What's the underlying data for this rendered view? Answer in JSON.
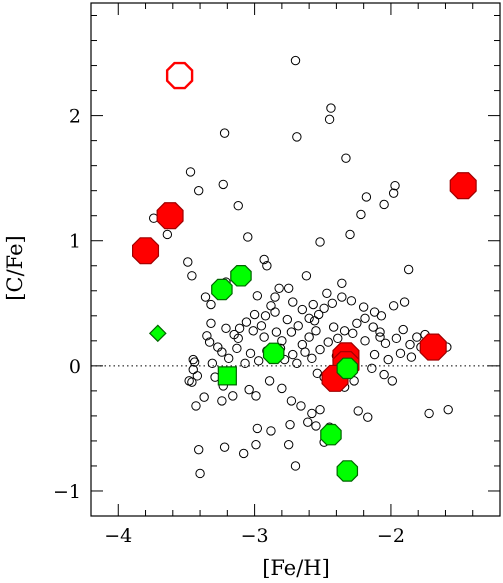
{
  "chart_data": {
    "type": "scatter",
    "xlabel": "[Fe/H]",
    "ylabel": "[C/Fe]",
    "xlim": [
      -4.2,
      -1.2
    ],
    "ylim": [
      -1.2,
      2.9
    ],
    "grid": false,
    "reference_line": {
      "y": 0,
      "style": "dotted"
    },
    "x_ticks": [
      {
        "value": -4,
        "label": "−4"
      },
      {
        "value": -3,
        "label": "−3"
      },
      {
        "value": -2,
        "label": "−2"
      }
    ],
    "y_ticks": [
      {
        "value": -1,
        "label": "−1"
      },
      {
        "value": 0,
        "label": "0"
      },
      {
        "value": 1,
        "label": "1"
      },
      {
        "value": 2,
        "label": "2"
      }
    ],
    "x_minor_step": 0.2,
    "y_minor_step": 0.2,
    "series": [
      {
        "marker": "small-open-circle",
        "color": "#000000",
        "points": [
          [
            -2.7,
            2.44
          ],
          [
            -2.44,
            2.06
          ],
          [
            -2.45,
            1.97
          ],
          [
            -2.33,
            1.66
          ],
          [
            -2.69,
            1.83
          ],
          [
            -3.22,
            1.86
          ],
          [
            -3.47,
            1.55
          ],
          [
            -3.23,
            1.45
          ],
          [
            -3.41,
            1.4
          ],
          [
            -3.74,
            1.18
          ],
          [
            -3.64,
            1.05
          ],
          [
            -3.12,
            1.28
          ],
          [
            -3.05,
            1.03
          ],
          [
            -2.18,
            1.35
          ],
          [
            -1.97,
            1.44
          ],
          [
            -1.98,
            1.38
          ],
          [
            -2.05,
            1.29
          ],
          [
            -2.22,
            1.21
          ],
          [
            -2.3,
            1.05
          ],
          [
            -2.52,
            0.99
          ],
          [
            -2.93,
            0.85
          ],
          [
            -2.91,
            0.8
          ],
          [
            -3.49,
            0.83
          ],
          [
            -3.46,
            0.72
          ],
          [
            -1.87,
            0.77
          ],
          [
            -2.36,
            0.66
          ],
          [
            -2.62,
            0.72
          ],
          [
            -2.75,
            0.62
          ],
          [
            -3.21,
            0.67
          ],
          [
            -2.98,
            0.56
          ],
          [
            -2.72,
            0.51
          ],
          [
            -3.36,
            0.55
          ],
          [
            -3.32,
            0.49
          ],
          [
            -2.36,
            0.55
          ],
          [
            -2.43,
            0.5
          ],
          [
            -2.29,
            0.52
          ],
          [
            -2.07,
            0.4
          ],
          [
            -2.12,
            0.43
          ],
          [
            -1.9,
            0.51
          ],
          [
            -1.98,
            0.48
          ],
          [
            -2.19,
            0.38
          ],
          [
            -2.49,
            0.46
          ],
          [
            -2.53,
            0.41
          ],
          [
            -2.6,
            0.38
          ],
          [
            -2.88,
            0.48
          ],
          [
            -2.85,
            0.43
          ],
          [
            -2.92,
            0.4
          ],
          [
            -3.0,
            0.41
          ],
          [
            -3.06,
            0.35
          ],
          [
            -3.11,
            0.3
          ],
          [
            -3.01,
            0.28
          ],
          [
            -3.21,
            0.3
          ],
          [
            -3.32,
            0.34
          ],
          [
            -3.35,
            0.24
          ],
          [
            -3.33,
            0.19
          ],
          [
            -3.12,
            0.22
          ],
          [
            -2.68,
            0.32
          ],
          [
            -2.73,
            0.27
          ],
          [
            -2.76,
            0.37
          ],
          [
            -2.8,
            0.2
          ],
          [
            -2.84,
            0.27
          ],
          [
            -2.93,
            0.23
          ],
          [
            -2.56,
            0.36
          ],
          [
            -2.6,
            0.23
          ],
          [
            -2.65,
            0.17
          ],
          [
            -2.39,
            0.22
          ],
          [
            -2.46,
            0.19
          ],
          [
            -2.34,
            0.28
          ],
          [
            -2.28,
            0.26
          ],
          [
            -2.19,
            0.2
          ],
          [
            -2.13,
            0.31
          ],
          [
            -2.08,
            0.27
          ],
          [
            -2.04,
            0.18
          ],
          [
            -1.96,
            0.22
          ],
          [
            -1.91,
            0.29
          ],
          [
            -1.86,
            0.17
          ],
          [
            -1.81,
            0.23
          ],
          [
            -1.78,
            0.15
          ],
          [
            -1.69,
            0.21
          ],
          [
            -1.93,
            0.1
          ],
          [
            -1.85,
            0.07
          ],
          [
            -2.02,
            0.05
          ],
          [
            -2.12,
            0.09
          ],
          [
            -2.29,
            0.11
          ],
          [
            -2.35,
            0.03
          ],
          [
            -2.4,
            0.08
          ],
          [
            -2.52,
            0.13
          ],
          [
            -2.58,
            0.06
          ],
          [
            -2.63,
            0.11
          ],
          [
            -2.69,
            0.02
          ],
          [
            -2.72,
            0.09
          ],
          [
            -2.81,
            0.14
          ],
          [
            -2.87,
            0.07
          ],
          [
            -2.91,
            0.12
          ],
          [
            -2.97,
            0.04
          ],
          [
            -3.03,
            0.1
          ],
          [
            -3.07,
            0.02
          ],
          [
            -3.13,
            0.14
          ],
          [
            -3.19,
            0.06
          ],
          [
            -3.24,
            0.11
          ],
          [
            -3.31,
            0.02
          ],
          [
            -3.44,
            0.03
          ],
          [
            -3.45,
            -0.03
          ],
          [
            -3.42,
            -0.08
          ],
          [
            -3.46,
            -0.13
          ],
          [
            -3.29,
            -0.09
          ],
          [
            -3.23,
            -0.16
          ],
          [
            -3.24,
            -0.28
          ],
          [
            -3.16,
            -0.24
          ],
          [
            -3.04,
            -0.19
          ],
          [
            -2.99,
            -0.24
          ],
          [
            -2.89,
            -0.12
          ],
          [
            -2.8,
            -0.18
          ],
          [
            -2.73,
            -0.28
          ],
          [
            -2.66,
            -0.32
          ],
          [
            -2.58,
            -0.38
          ],
          [
            -2.52,
            -0.35
          ],
          [
            -2.61,
            -0.45
          ],
          [
            -2.55,
            -0.48
          ],
          [
            -2.45,
            -0.49
          ],
          [
            -2.24,
            -0.36
          ],
          [
            -2.17,
            -0.41
          ],
          [
            -2.27,
            -0.12
          ],
          [
            -2.34,
            -0.17
          ],
          [
            -2.49,
            -0.09
          ],
          [
            -2.54,
            -0.06
          ],
          [
            -2.14,
            -0.02
          ],
          [
            -2.05,
            -0.07
          ],
          [
            -1.99,
            -0.12
          ],
          [
            -1.72,
            -0.38
          ],
          [
            -1.58,
            -0.35
          ],
          [
            -1.59,
            0.15
          ],
          [
            -1.75,
            0.25
          ],
          [
            -3.43,
            -0.32
          ],
          [
            -3.41,
            -0.67
          ],
          [
            -3.4,
            -0.86
          ],
          [
            -3.22,
            -0.65
          ],
          [
            -3.08,
            -0.7
          ],
          [
            -2.98,
            -0.5
          ],
          [
            -2.99,
            -0.63
          ],
          [
            -2.88,
            -0.52
          ],
          [
            -2.74,
            -0.47
          ],
          [
            -2.75,
            -0.63
          ],
          [
            -2.7,
            -0.8
          ],
          [
            -2.49,
            -0.61
          ],
          [
            -3.48,
            -0.12
          ],
          [
            -3.37,
            -0.25
          ],
          [
            -3.45,
            0.05
          ],
          [
            -2.85,
            0.55
          ],
          [
            -2.47,
            0.58
          ],
          [
            -2.2,
            0.47
          ],
          [
            -2.08,
            0.23
          ],
          [
            -2.25,
            0.34
          ],
          [
            -2.55,
            0.28
          ],
          [
            -2.78,
            0.05
          ],
          [
            -3.15,
            0.25
          ],
          [
            -3.27,
            0.15
          ],
          [
            -2.42,
            0.31
          ],
          [
            -2.65,
            0.45
          ],
          [
            -2.95,
            0.32
          ],
          [
            -2.82,
            0.62
          ],
          [
            -2.57,
            0.49
          ]
        ]
      },
      {
        "marker": "large-filled-octagon",
        "color": "#ff0000",
        "edge": "#a00000",
        "points": [
          [
            -1.47,
            1.44
          ],
          [
            -3.62,
            1.2
          ],
          [
            -3.8,
            0.92
          ],
          [
            -1.69,
            0.15
          ],
          [
            -2.33,
            0.08
          ],
          [
            -2.33,
            0.01
          ],
          [
            -2.41,
            -0.1
          ]
        ]
      },
      {
        "marker": "large-open-octagon",
        "color": "#ff0000",
        "points": [
          [
            -3.55,
            2.32
          ]
        ]
      },
      {
        "marker": "filled-octagon",
        "color": "#00ff00",
        "edge": "#006400",
        "points": [
          [
            -3.24,
            0.61
          ],
          [
            -3.1,
            0.72
          ],
          [
            -2.86,
            0.1
          ],
          [
            -2.32,
            -0.02
          ],
          [
            -2.44,
            -0.55
          ],
          [
            -2.32,
            -0.84
          ]
        ]
      },
      {
        "marker": "filled-square",
        "color": "#00ff00",
        "edge": "#006400",
        "points": [
          [
            -3.2,
            -0.08
          ]
        ]
      },
      {
        "marker": "filled-diamond",
        "color": "#00ff00",
        "edge": "#006400",
        "points": [
          [
            -3.71,
            0.26
          ]
        ]
      }
    ]
  }
}
